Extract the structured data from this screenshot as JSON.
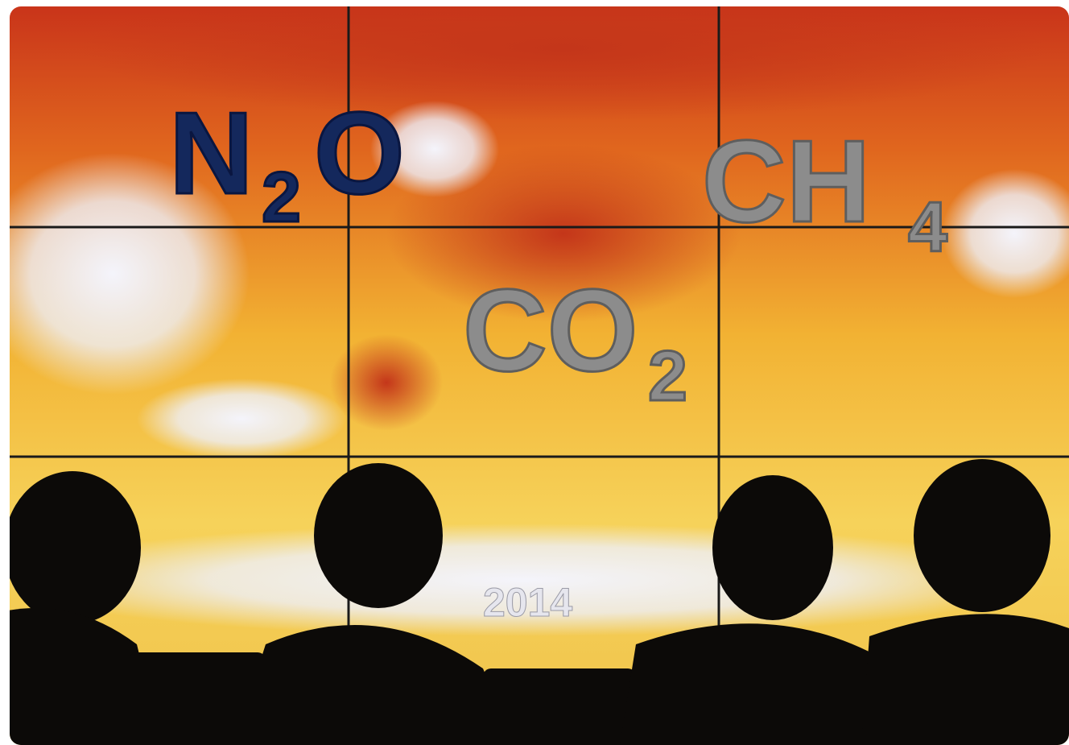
{
  "formulas": [
    {
      "symbol": "N",
      "subscript": "2",
      "rest": "O"
    },
    {
      "symbol": "CH",
      "subscript": "4"
    },
    {
      "symbol": "CO",
      "subscript": "2"
    }
  ],
  "year": "2014"
}
